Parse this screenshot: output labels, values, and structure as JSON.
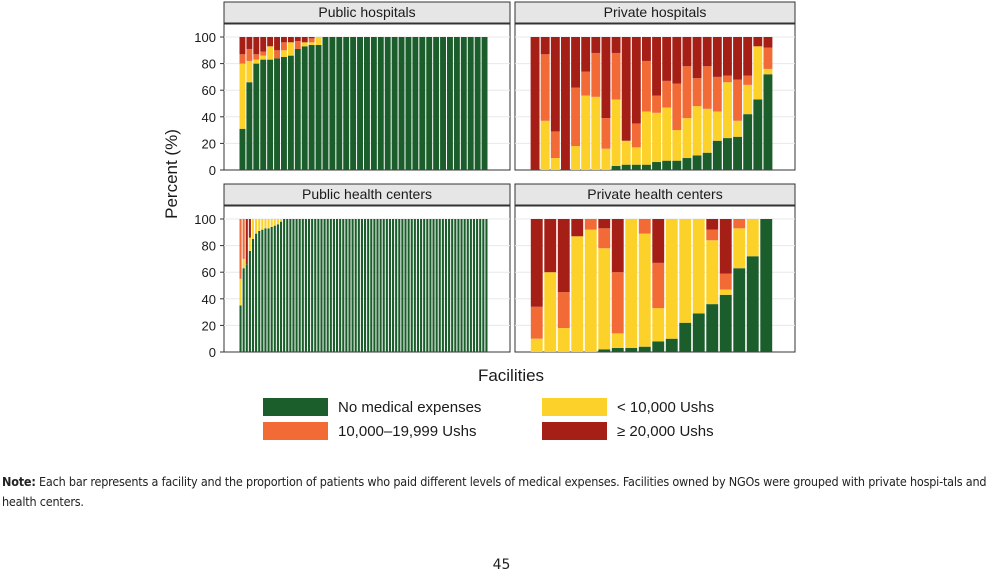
{
  "chart_data": {
    "type": "bar",
    "stacked": true,
    "ylabel": "Percent (%)",
    "xlabel": "Facilities",
    "ylim": [
      0,
      100
    ],
    "yticks": [
      0,
      20,
      40,
      60,
      80,
      100
    ],
    "grid": true,
    "legend_position": "bottom",
    "legend": [
      {
        "key": "none",
        "label": "No medical expenses"
      },
      {
        "key": "low",
        "label": "< 10,000 Ushs"
      },
      {
        "key": "mid",
        "label": "10,000–19,999 Ushs"
      },
      {
        "key": "high",
        "label": "≥ 20,000 Ushs"
      }
    ],
    "colors": {
      "none": "#1b5e2b",
      "low": "#fcd22a",
      "mid": "#f26b36",
      "high": "#a61f17"
    },
    "panels": [
      {
        "title": "Public hospitals",
        "bars": [
          [
            31,
            49,
            7,
            13
          ],
          [
            66,
            16,
            9,
            9
          ],
          [
            80,
            3,
            4,
            13
          ],
          [
            83,
            3,
            3,
            11
          ],
          [
            83,
            10,
            0,
            7
          ],
          [
            84,
            0,
            6,
            10
          ],
          [
            85,
            5,
            6,
            4
          ],
          [
            86,
            10,
            0,
            4
          ],
          [
            91,
            0,
            6,
            3
          ],
          [
            93,
            3,
            0,
            4
          ],
          [
            94,
            2,
            3,
            1
          ],
          [
            94,
            6,
            0,
            0
          ],
          [
            100,
            0,
            0,
            0
          ],
          [
            100,
            0,
            0,
            0
          ],
          [
            100,
            0,
            0,
            0
          ],
          [
            100,
            0,
            0,
            0
          ],
          [
            100,
            0,
            0,
            0
          ],
          [
            100,
            0,
            0,
            0
          ],
          [
            100,
            0,
            0,
            0
          ],
          [
            100,
            0,
            0,
            0
          ],
          [
            100,
            0,
            0,
            0
          ],
          [
            100,
            0,
            0,
            0
          ],
          [
            100,
            0,
            0,
            0
          ],
          [
            100,
            0,
            0,
            0
          ],
          [
            100,
            0,
            0,
            0
          ],
          [
            100,
            0,
            0,
            0
          ],
          [
            100,
            0,
            0,
            0
          ],
          [
            100,
            0,
            0,
            0
          ],
          [
            100,
            0,
            0,
            0
          ],
          [
            100,
            0,
            0,
            0
          ],
          [
            100,
            0,
            0,
            0
          ],
          [
            100,
            0,
            0,
            0
          ],
          [
            100,
            0,
            0,
            0
          ],
          [
            100,
            0,
            0,
            0
          ],
          [
            100,
            0,
            0,
            0
          ],
          [
            100,
            0,
            0,
            0
          ]
        ]
      },
      {
        "title": "Private hospitals",
        "bars": [
          [
            0,
            0,
            0,
            100
          ],
          [
            0,
            37,
            50,
            13
          ],
          [
            0,
            9,
            20,
            71
          ],
          [
            0,
            0,
            0,
            100
          ],
          [
            0,
            18,
            44,
            38
          ],
          [
            0,
            56,
            18,
            26
          ],
          [
            0,
            55,
            33,
            12
          ],
          [
            0,
            16,
            23,
            61
          ],
          [
            3,
            50,
            35,
            12
          ],
          [
            4,
            18,
            0,
            78
          ],
          [
            4,
            13,
            18,
            65
          ],
          [
            4,
            40,
            38,
            18
          ],
          [
            6,
            37,
            13,
            44
          ],
          [
            7,
            40,
            20,
            33
          ],
          [
            7,
            23,
            35,
            35
          ],
          [
            9,
            30,
            39,
            22
          ],
          [
            11,
            37,
            21,
            31
          ],
          [
            13,
            33,
            32,
            22
          ],
          [
            22,
            22,
            26,
            30
          ],
          [
            24,
            42,
            5,
            29
          ],
          [
            25,
            12,
            31,
            32
          ],
          [
            42,
            22,
            7,
            29
          ],
          [
            53,
            40,
            0,
            7
          ],
          [
            72,
            4,
            16,
            8
          ]
        ]
      },
      {
        "title": "Public health centers",
        "bars": [
          [
            35,
            20,
            45,
            0
          ],
          [
            63,
            7,
            30,
            0
          ],
          [
            66,
            0,
            0,
            34
          ],
          [
            76,
            10,
            0,
            14
          ],
          [
            85,
            15,
            0,
            0
          ],
          [
            89,
            11,
            0,
            0
          ],
          [
            91,
            9,
            0,
            0
          ],
          [
            92,
            8,
            0,
            0
          ],
          [
            93,
            7,
            0,
            0
          ],
          [
            93,
            7,
            0,
            0
          ],
          [
            94,
            6,
            0,
            0
          ],
          [
            95,
            5,
            0,
            0
          ],
          [
            96,
            4,
            0,
            0
          ],
          [
            98,
            2,
            0,
            0
          ],
          [
            100,
            0,
            0,
            0
          ],
          [
            100,
            0,
            0,
            0
          ],
          [
            100,
            0,
            0,
            0
          ],
          [
            100,
            0,
            0,
            0
          ],
          [
            100,
            0,
            0,
            0
          ],
          [
            100,
            0,
            0,
            0
          ],
          [
            100,
            0,
            0,
            0
          ],
          [
            100,
            0,
            0,
            0
          ],
          [
            100,
            0,
            0,
            0
          ],
          [
            100,
            0,
            0,
            0
          ],
          [
            100,
            0,
            0,
            0
          ],
          [
            100,
            0,
            0,
            0
          ],
          [
            100,
            0,
            0,
            0
          ],
          [
            100,
            0,
            0,
            0
          ],
          [
            100,
            0,
            0,
            0
          ],
          [
            100,
            0,
            0,
            0
          ],
          [
            100,
            0,
            0,
            0
          ],
          [
            100,
            0,
            0,
            0
          ],
          [
            100,
            0,
            0,
            0
          ],
          [
            100,
            0,
            0,
            0
          ],
          [
            100,
            0,
            0,
            0
          ],
          [
            100,
            0,
            0,
            0
          ],
          [
            100,
            0,
            0,
            0
          ],
          [
            100,
            0,
            0,
            0
          ],
          [
            100,
            0,
            0,
            0
          ],
          [
            100,
            0,
            0,
            0
          ],
          [
            100,
            0,
            0,
            0
          ],
          [
            100,
            0,
            0,
            0
          ],
          [
            100,
            0,
            0,
            0
          ],
          [
            100,
            0,
            0,
            0
          ],
          [
            100,
            0,
            0,
            0
          ],
          [
            100,
            0,
            0,
            0
          ],
          [
            100,
            0,
            0,
            0
          ],
          [
            100,
            0,
            0,
            0
          ],
          [
            100,
            0,
            0,
            0
          ],
          [
            100,
            0,
            0,
            0
          ],
          [
            100,
            0,
            0,
            0
          ],
          [
            100,
            0,
            0,
            0
          ],
          [
            100,
            0,
            0,
            0
          ],
          [
            100,
            0,
            0,
            0
          ],
          [
            100,
            0,
            0,
            0
          ],
          [
            100,
            0,
            0,
            0
          ],
          [
            100,
            0,
            0,
            0
          ],
          [
            100,
            0,
            0,
            0
          ],
          [
            100,
            0,
            0,
            0
          ],
          [
            100,
            0,
            0,
            0
          ],
          [
            100,
            0,
            0,
            0
          ],
          [
            100,
            0,
            0,
            0
          ],
          [
            100,
            0,
            0,
            0
          ],
          [
            100,
            0,
            0,
            0
          ],
          [
            100,
            0,
            0,
            0
          ],
          [
            100,
            0,
            0,
            0
          ],
          [
            100,
            0,
            0,
            0
          ],
          [
            100,
            0,
            0,
            0
          ],
          [
            100,
            0,
            0,
            0
          ],
          [
            100,
            0,
            0,
            0
          ],
          [
            100,
            0,
            0,
            0
          ],
          [
            100,
            0,
            0,
            0
          ],
          [
            100,
            0,
            0,
            0
          ],
          [
            100,
            0,
            0,
            0
          ],
          [
            100,
            0,
            0,
            0
          ],
          [
            100,
            0,
            0,
            0
          ],
          [
            100,
            0,
            0,
            0
          ],
          [
            100,
            0,
            0,
            0
          ],
          [
            100,
            0,
            0,
            0
          ],
          [
            100,
            0,
            0,
            0
          ]
        ]
      },
      {
        "title": "Private health centers",
        "bars": [
          [
            0,
            10,
            24,
            66
          ],
          [
            0,
            60,
            0,
            40
          ],
          [
            0,
            18,
            27,
            55
          ],
          [
            0,
            87,
            0,
            13
          ],
          [
            0,
            92,
            8,
            0
          ],
          [
            2,
            76,
            15,
            7
          ],
          [
            3,
            11,
            46,
            40
          ],
          [
            3,
            97,
            0,
            0
          ],
          [
            4,
            85,
            11,
            0
          ],
          [
            8,
            25,
            34,
            33
          ],
          [
            10,
            90,
            0,
            0
          ],
          [
            22,
            78,
            0,
            0
          ],
          [
            29,
            71,
            0,
            0
          ],
          [
            36,
            48,
            8,
            8
          ],
          [
            43,
            4,
            12,
            41
          ],
          [
            63,
            30,
            7,
            0
          ],
          [
            72,
            28,
            0,
            0
          ],
          [
            100,
            0,
            0,
            0
          ]
        ]
      }
    ]
  },
  "note": {
    "label": "Note:",
    "text": " Each bar represents a facility and the proportion of patients who paid different levels of medical expenses. Facilities owned by NGOs were grouped with private hospi-tals and health centers."
  },
  "page_number": "45"
}
